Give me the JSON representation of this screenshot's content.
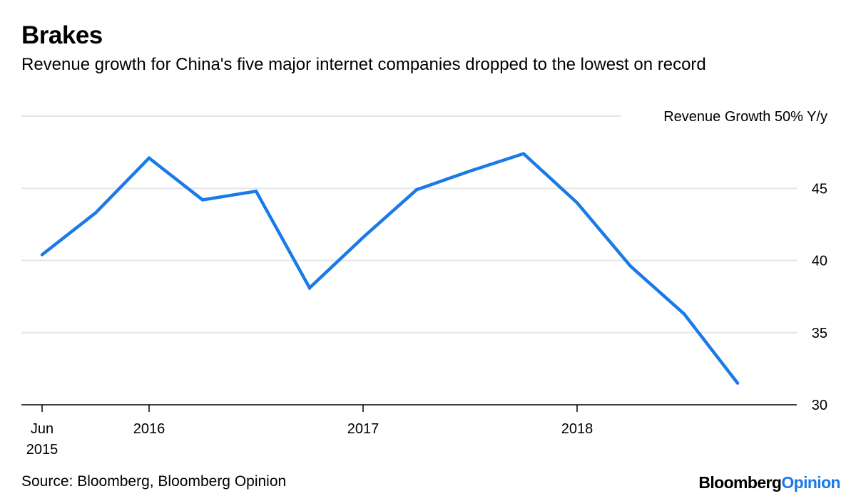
{
  "header": {
    "title": "Brakes",
    "subtitle": "Revenue growth for China's five major internet companies dropped to the lowest on record"
  },
  "footer": {
    "source": "Source: Bloomberg, Bloomberg Opinion",
    "logo_brand": "Bloomberg",
    "logo_suffix": "Opinion"
  },
  "colors": {
    "line": "#1a7ae6",
    "grid": "#e6e6e6",
    "axis": "#000000",
    "logo_accent": "#1a7ae6"
  },
  "chart_data": {
    "type": "line",
    "title": "Brakes",
    "subtitle": "Revenue growth for China's five major internet companies dropped to the lowest on record",
    "ylabel": "Revenue Growth 50% Y/y",
    "y_axis_side": "right",
    "ylim": [
      30,
      50
    ],
    "yticks": [
      30,
      35,
      40,
      45
    ],
    "grid": true,
    "xlim": [
      0,
      13.8
    ],
    "xticks": [
      {
        "x": 0,
        "line1": "Jun",
        "line2": "2015"
      },
      {
        "x": 2,
        "line1": "2016",
        "line2": ""
      },
      {
        "x": 6,
        "line1": "2017",
        "line2": ""
      },
      {
        "x": 10,
        "line1": "2018",
        "line2": ""
      }
    ],
    "series": [
      {
        "name": "Revenue Growth",
        "x": [
          "Jun 2015",
          "Sep 2015",
          "Dec 2015",
          "Mar 2016",
          "Jun 2016",
          "Sep 2016",
          "Dec 2016",
          "Mar 2017",
          "Jun 2017",
          "Sep 2017",
          "Dec 2017",
          "Mar 2018",
          "Jun 2018",
          "Sep 2018"
        ],
        "values": [
          40.4,
          43.3,
          47.1,
          44.2,
          44.8,
          38.1,
          41.6,
          44.9,
          46.2,
          47.4,
          44.0,
          39.6,
          36.3,
          31.5
        ]
      }
    ],
    "source": "Source: Bloomberg, Bloomberg Opinion"
  }
}
